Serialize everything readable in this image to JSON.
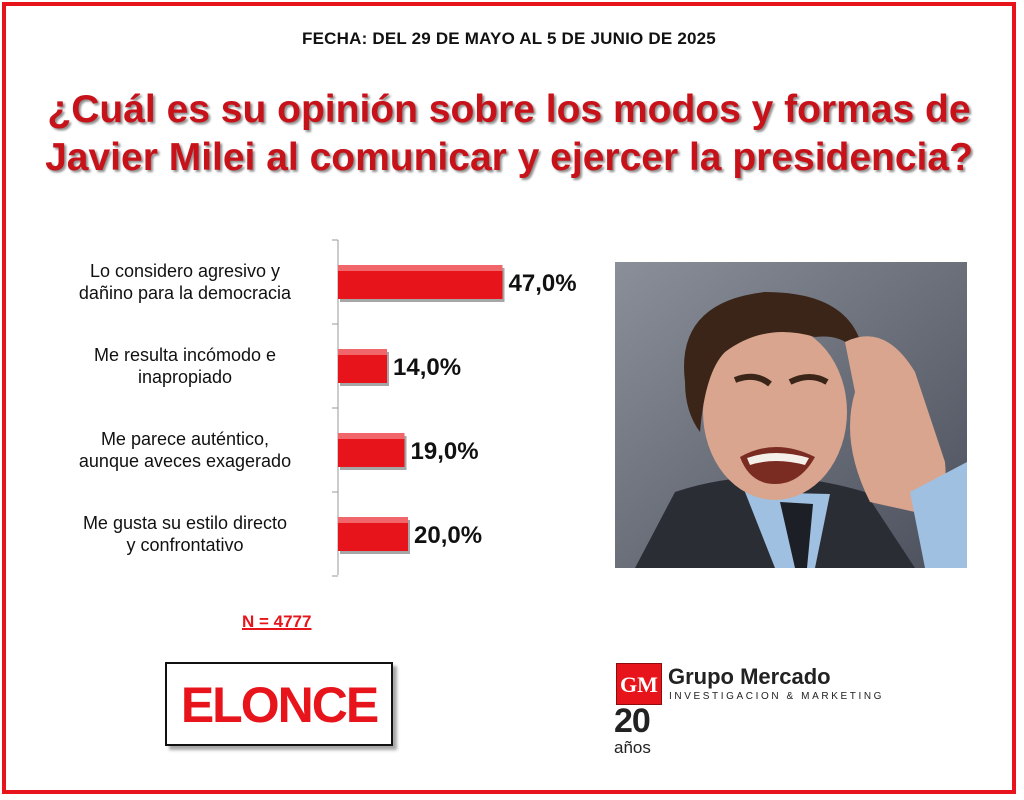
{
  "header": {
    "date": "FECHA: DEL 29 DE MAYO AL 5 DE JUNIO DE 2025",
    "question": "¿Cuál es su opinión sobre los modos y formas de Javier Milei al comunicar y ejercer la presidencia?"
  },
  "sample": "N = 4777",
  "chart_data": {
    "type": "bar",
    "orientation": "horizontal",
    "categories": [
      "Lo considero agresivo y dañino para la democracia",
      "Me resulta incómodo e inapropiado",
      "Me parece auténtico, aunque aveces exagerado",
      "Me gusta su estilo directo y confrontativo"
    ],
    "category_lines": [
      [
        "Lo considero agresivo y",
        "dañino para la democracia"
      ],
      [
        "Me resulta incómodo e",
        "inapropiado"
      ],
      [
        "Me parece auténtico,",
        "aunque aveces exagerado"
      ],
      [
        "Me gusta su estilo directo",
        "y confrontativo"
      ]
    ],
    "values": [
      47.0,
      14.0,
      19.0,
      20.0
    ],
    "value_labels": [
      "47,0%",
      "14,0%",
      "19,0%",
      "20,0%"
    ],
    "xlim": [
      0,
      100
    ],
    "grid": false,
    "bar_color": "#e8141b"
  },
  "logos": {
    "media": "ELONCE",
    "pollster_mark": "GM",
    "pollster": "Grupo Mercado",
    "pollster_sub": "INVESTIGACION & MARKETING",
    "years_number": "20",
    "years_word": "años"
  },
  "colors": {
    "frame": "#e8141b",
    "title": "#c8121a",
    "bar": "#e8141b"
  },
  "photo": {
    "subject": "man-grimacing-photo"
  }
}
